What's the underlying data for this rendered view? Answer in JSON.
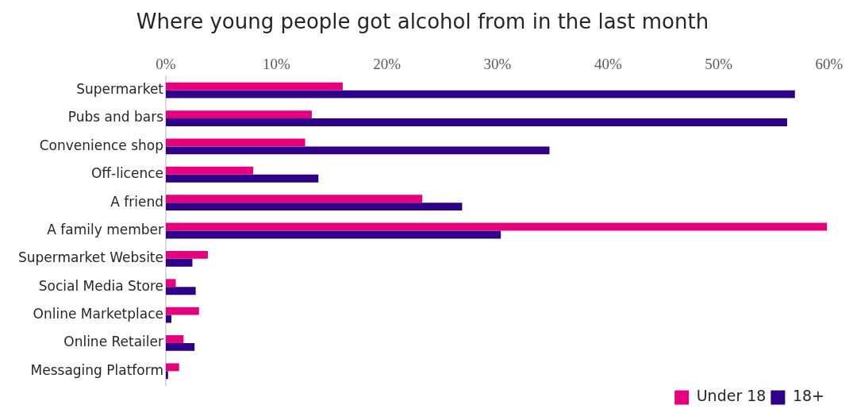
{
  "chart_data": {
    "type": "bar",
    "orientation": "horizontal",
    "title": "Where young people got alcohol from in the last month",
    "categories": [
      "Supermarket",
      "Pubs and bars",
      "Convenience shop",
      "Off-licence",
      "A friend",
      "A family member",
      "Supermarket Website",
      "Social Media Store",
      "Online Marketplace",
      "Online Retailer",
      "Messaging Platform"
    ],
    "series": [
      {
        "name": "Under 18",
        "color": "#e6007e",
        "values": [
          16.0,
          13.2,
          12.6,
          7.9,
          23.2,
          59.8,
          3.8,
          0.9,
          3.0,
          1.6,
          1.2
        ]
      },
      {
        "name": "18+",
        "color": "#2e0089",
        "values": [
          56.9,
          56.2,
          34.7,
          13.8,
          26.8,
          30.3,
          2.4,
          2.7,
          0.5,
          2.6,
          0.2
        ]
      }
    ],
    "xlim": [
      0,
      60
    ],
    "xticks": [
      {
        "value": 0,
        "label": "0%"
      },
      {
        "value": 10,
        "label": "10%"
      },
      {
        "value": 20,
        "label": "20%"
      },
      {
        "value": 30,
        "label": "30%"
      },
      {
        "value": 40,
        "label": "40%"
      },
      {
        "value": 50,
        "label": "50%"
      },
      {
        "value": 60,
        "label": "60%"
      }
    ],
    "grid": false,
    "legend": "bottom right"
  }
}
